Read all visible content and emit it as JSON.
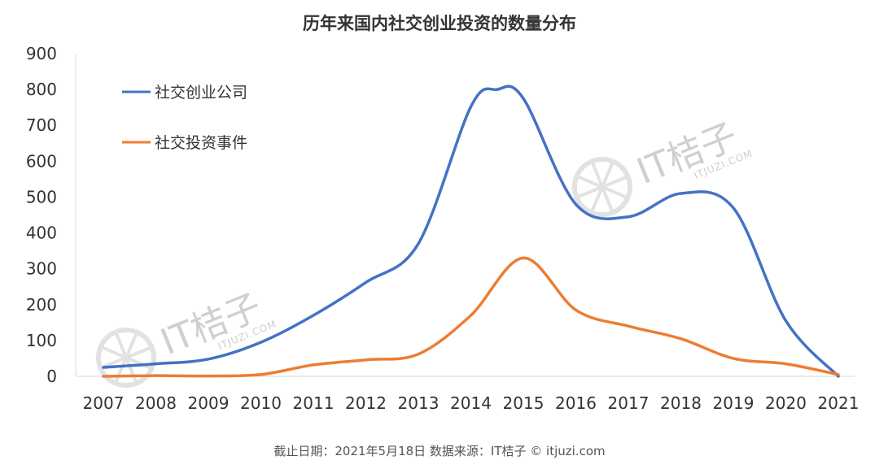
{
  "chart_data": {
    "type": "line",
    "title": "历年来国内社交创业投资的数量分布",
    "x": [
      "2007",
      "2008",
      "2009",
      "2010",
      "2011",
      "2012",
      "2013",
      "2014",
      "2015",
      "2016",
      "2017",
      "2018",
      "2019",
      "2020",
      "2021"
    ],
    "ylim": [
      0,
      900
    ],
    "yticks": [
      0,
      100,
      200,
      300,
      400,
      500,
      600,
      700,
      800,
      900
    ],
    "grid": false,
    "legend_placement": "top-left",
    "series": [
      {
        "name": "社交创业公司",
        "color": "#4472c4",
        "points": [
          {
            "x": "2007",
            "y": 25
          },
          {
            "x": "2008",
            "y": 35
          },
          {
            "x": "2009",
            "y": 48
          },
          {
            "x": "2010",
            "y": 95
          },
          {
            "x": "2011",
            "y": 170
          },
          {
            "x": "2012",
            "y": 262
          },
          {
            "x": "2013",
            "y": 370
          },
          {
            "x": "2014",
            "y": 752
          },
          {
            "x": "2014.5",
            "y": 800
          },
          {
            "x": "2015",
            "y": 775
          },
          {
            "x": "2016",
            "y": 480
          },
          {
            "x": "2017",
            "y": 445
          },
          {
            "x": "2018",
            "y": 510
          },
          {
            "x": "2019",
            "y": 470
          },
          {
            "x": "2020",
            "y": 155
          },
          {
            "x": "2021",
            "y": 0
          }
        ]
      },
      {
        "name": "社交投资事件",
        "color": "#ed7d31",
        "points": [
          {
            "x": "2007",
            "y": 0
          },
          {
            "x": "2008",
            "y": 2
          },
          {
            "x": "2009",
            "y": 1
          },
          {
            "x": "2010",
            "y": 5
          },
          {
            "x": "2011",
            "y": 32
          },
          {
            "x": "2012",
            "y": 46
          },
          {
            "x": "2013",
            "y": 62
          },
          {
            "x": "2014",
            "y": 170
          },
          {
            "x": "2015",
            "y": 330
          },
          {
            "x": "2016",
            "y": 185
          },
          {
            "x": "2017",
            "y": 140
          },
          {
            "x": "2018",
            "y": 105
          },
          {
            "x": "2019",
            "y": 50
          },
          {
            "x": "2020",
            "y": 35
          },
          {
            "x": "2021",
            "y": 5
          }
        ]
      }
    ],
    "source": "截止日期：2021年5月18日     数据来源：IT桔子 © itjuzi.com"
  },
  "watermark": {
    "text": "IT桔子",
    "sub": "ITJUZI.COM",
    "color": "#cfcfcf"
  }
}
